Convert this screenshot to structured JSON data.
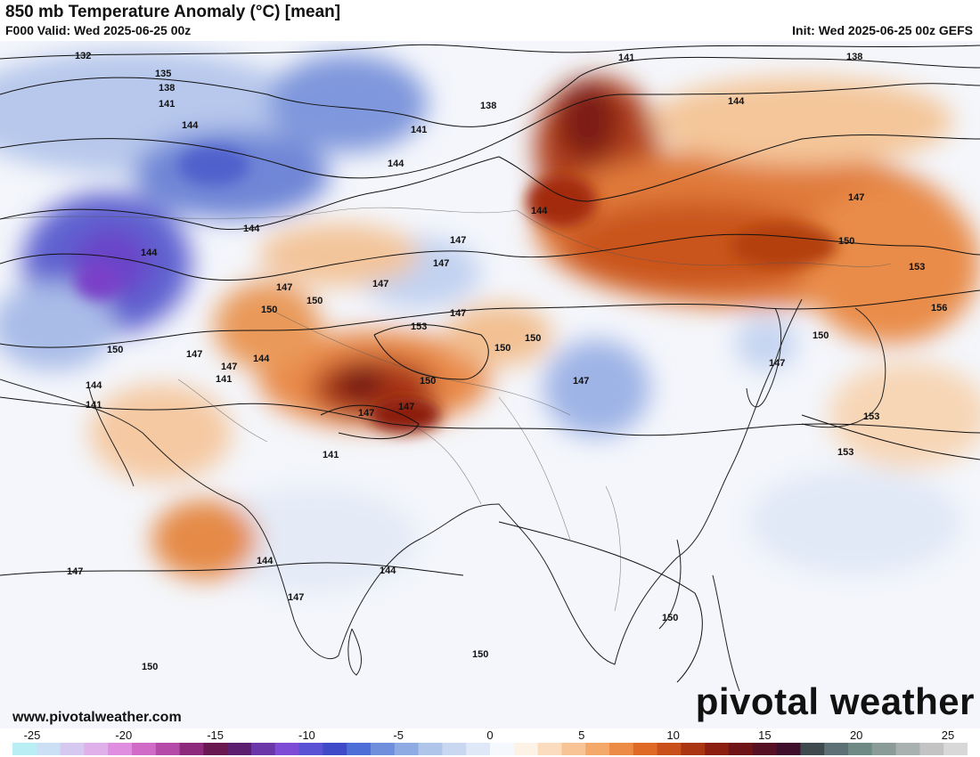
{
  "header": {
    "title": "850 mb Temperature Anomaly (°C) [mean]",
    "valid": "F000 Valid: Wed 2025-06-25 00z",
    "init": "Init: Wed 2025-06-25 00z GEFS"
  },
  "footer": {
    "website": "www.pivotalweather.com",
    "brand": "pivotal weather"
  },
  "colorbar": {
    "tick_labels": [
      "-25",
      "-20",
      "-15",
      "-10",
      "-5",
      "0",
      "5",
      "10",
      "15",
      "20",
      "25"
    ],
    "colors": [
      "#b8eef4",
      "#cbe0f5",
      "#d6c9ef",
      "#e0b0ea",
      "#e08ee0",
      "#d06cc8",
      "#b64aa8",
      "#8e2a7c",
      "#6a1850",
      "#5c1e6e",
      "#6b37a8",
      "#7d4bd6",
      "#5a52d4",
      "#3e4ac8",
      "#4d6ed6",
      "#6f8fdc",
      "#8fabe3",
      "#afc5ea",
      "#c9d8f0",
      "#dfe8f6",
      "#f5f8fc",
      "#fdf2e6",
      "#fbdcbf",
      "#f8c495",
      "#f4a96a",
      "#ec8b45",
      "#df6a25",
      "#c9501a",
      "#aa3512",
      "#8b1e0e",
      "#6e1417",
      "#561023",
      "#3e0e2b",
      "#3f4a4e",
      "#5c7076",
      "#6f8a85",
      "#8a9b98",
      "#a8b0b0",
      "#c3c3c3",
      "#d8d8d8"
    ]
  },
  "map": {
    "contour_labels": [
      "132",
      "135",
      "138",
      "141",
      "144",
      "147",
      "150",
      "153",
      "156"
    ]
  }
}
